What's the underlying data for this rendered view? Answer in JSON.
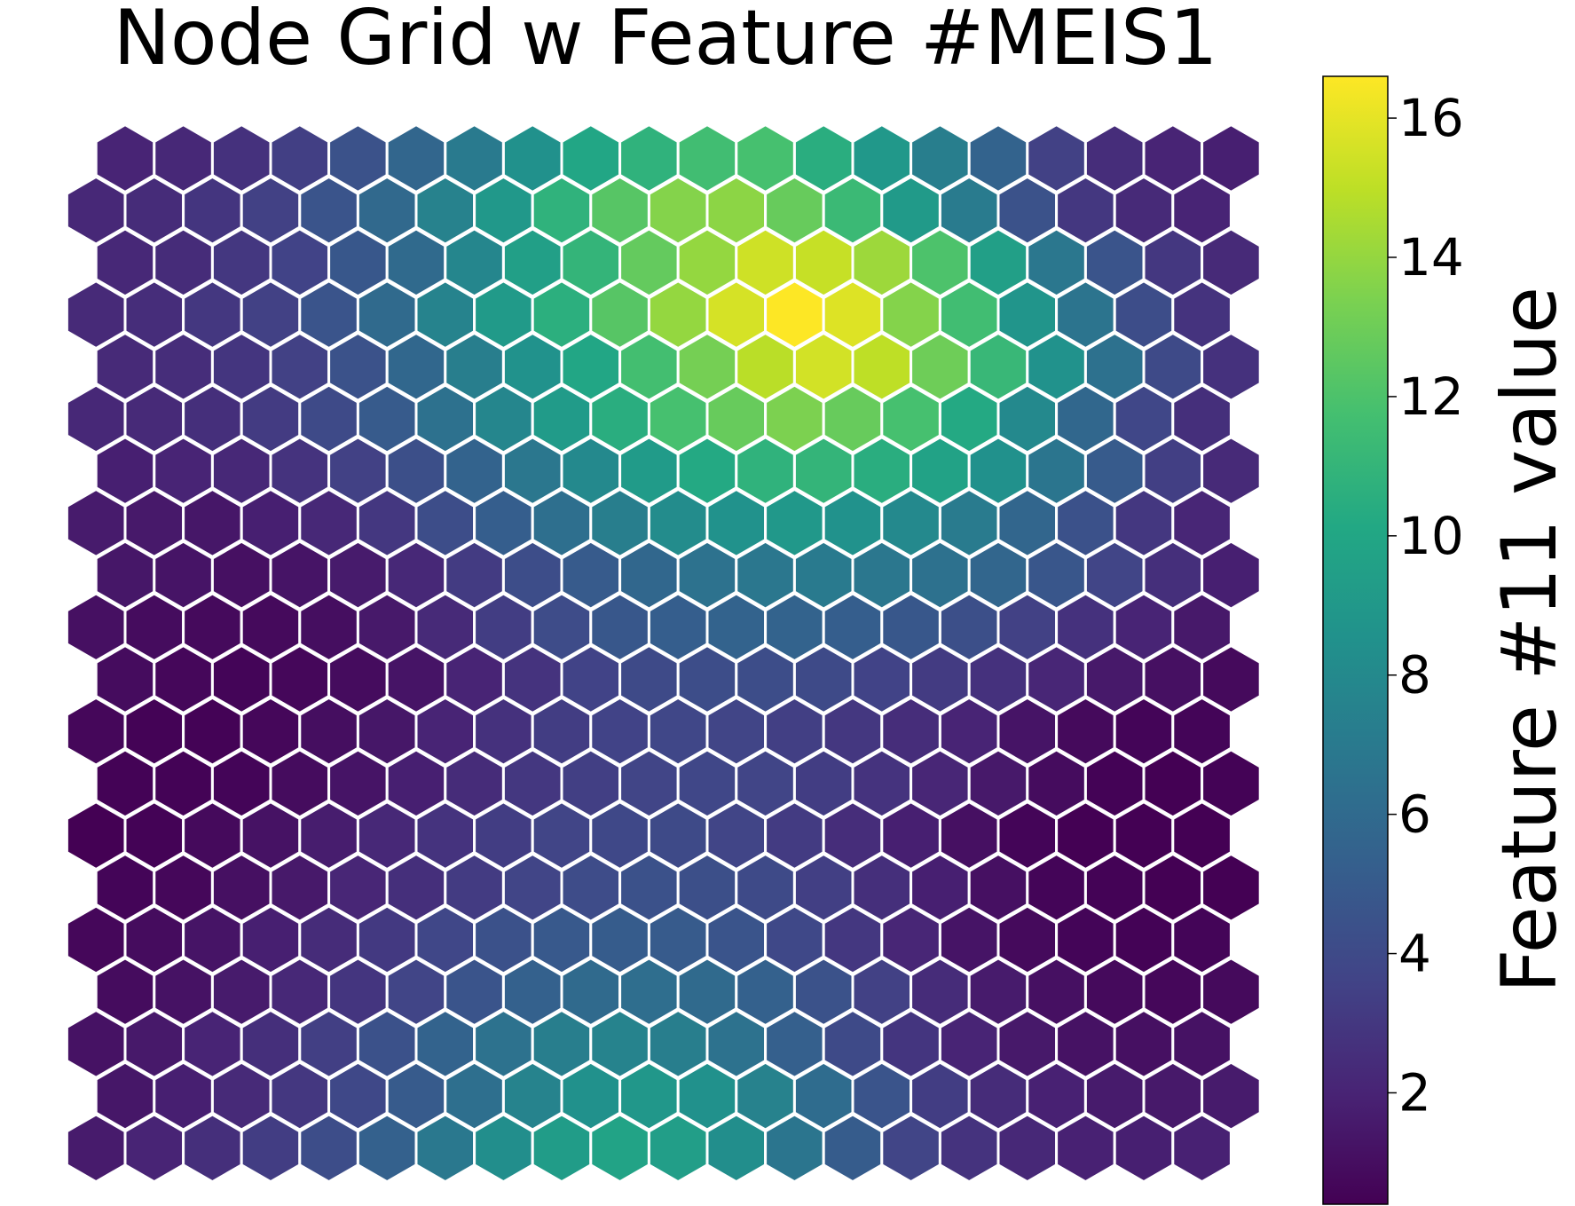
{
  "chart_data": {
    "type": "heatmap",
    "title": "Node Grid w Feature #MEIS1",
    "grid_shape": "hexagonal",
    "rows": 20,
    "cols": 20,
    "colormap": "viridis",
    "colorbar": {
      "label": "Feature #11 value",
      "min": 0.4,
      "max": 16.6,
      "ticks": [
        2,
        4,
        6,
        8,
        10,
        12,
        14,
        16
      ],
      "tick_labels": [
        "2",
        "4",
        "6",
        "8",
        "10",
        "12",
        "14",
        "16"
      ]
    },
    "values": [
      [
        2.0,
        2.2,
        2.7,
        3.4,
        4.5,
        5.7,
        7.0,
        8.5,
        10.0,
        10.8,
        11.6,
        11.8,
        10.5,
        9.0,
        7.3,
        5.5,
        3.5,
        2.5,
        2.0,
        1.8
      ],
      [
        2.2,
        2.4,
        2.9,
        3.5,
        4.6,
        5.9,
        7.5,
        9.0,
        10.8,
        12.3,
        13.6,
        13.8,
        12.8,
        11.3,
        9.1,
        7.1,
        4.5,
        3.0,
        2.3,
        2.0
      ],
      [
        2.2,
        2.4,
        3.0,
        3.6,
        4.8,
        6.0,
        7.8,
        9.5,
        11.0,
        12.7,
        14.0,
        15.4,
        15.2,
        14.2,
        12.0,
        9.5,
        6.8,
        4.6,
        3.0,
        2.3
      ],
      [
        2.3,
        2.5,
        3.0,
        3.5,
        4.6,
        6.0,
        7.6,
        9.1,
        10.6,
        12.3,
        14.0,
        15.6,
        16.6,
        15.8,
        13.6,
        11.6,
        8.8,
        6.6,
        4.2,
        2.8
      ],
      [
        2.3,
        2.5,
        2.9,
        3.5,
        4.5,
        5.8,
        7.3,
        8.6,
        10.0,
        11.7,
        13.2,
        14.9,
        15.5,
        15.0,
        13.0,
        11.2,
        8.6,
        6.4,
        4.0,
        2.7
      ],
      [
        2.2,
        2.3,
        2.6,
        3.2,
        4.0,
        5.0,
        6.4,
        7.8,
        9.2,
        10.5,
        11.8,
        12.8,
        13.4,
        12.8,
        11.8,
        10.2,
        8.0,
        5.8,
        3.8,
        2.6
      ],
      [
        1.8,
        2.0,
        2.2,
        2.8,
        3.5,
        4.3,
        5.5,
        6.8,
        8.0,
        9.2,
        10.2,
        10.8,
        11.0,
        10.5,
        9.7,
        8.5,
        6.7,
        5.0,
        3.4,
        2.3
      ],
      [
        1.6,
        1.5,
        1.4,
        1.8,
        2.2,
        3.0,
        4.2,
        5.2,
        6.3,
        7.3,
        8.2,
        8.6,
        9.0,
        8.6,
        8.0,
        7.1,
        5.7,
        4.4,
        3.0,
        2.1
      ],
      [
        1.4,
        1.3,
        1.1,
        1.3,
        1.6,
        2.2,
        3.2,
        4.2,
        5.0,
        5.8,
        6.5,
        6.8,
        7.0,
        6.8,
        6.4,
        5.7,
        4.7,
        3.7,
        2.6,
        1.8
      ],
      [
        1.1,
        0.9,
        0.8,
        0.8,
        1.0,
        1.5,
        2.3,
        3.3,
        4.1,
        4.8,
        5.2,
        5.5,
        5.5,
        5.2,
        4.8,
        4.3,
        3.5,
        2.7,
        2.0,
        1.5
      ],
      [
        0.9,
        0.7,
        0.6,
        0.7,
        0.9,
        1.3,
        2.0,
        2.8,
        3.6,
        4.0,
        4.2,
        4.2,
        4.0,
        3.6,
        3.2,
        2.7,
        2.1,
        1.5,
        1.1,
        0.8
      ],
      [
        0.7,
        0.5,
        0.5,
        0.7,
        1.0,
        1.4,
        2.0,
        2.7,
        3.3,
        3.6,
        3.8,
        3.7,
        3.4,
        3.0,
        2.5,
        2.0,
        1.3,
        0.8,
        0.6,
        0.6
      ],
      [
        0.5,
        0.5,
        0.6,
        0.9,
        1.3,
        1.8,
        2.4,
        3.0,
        3.4,
        3.7,
        3.8,
        3.7,
        3.3,
        2.8,
        2.1,
        1.5,
        0.9,
        0.5,
        0.4,
        0.5
      ],
      [
        0.4,
        0.5,
        0.8,
        1.2,
        1.7,
        2.2,
        2.8,
        3.3,
        3.7,
        3.9,
        4.0,
        3.7,
        3.2,
        2.5,
        1.8,
        1.1,
        0.6,
        0.4,
        0.4,
        0.4
      ],
      [
        0.6,
        0.7,
        1.1,
        1.5,
        2.1,
        2.6,
        3.2,
        3.7,
        4.1,
        4.4,
        4.3,
        4.0,
        3.4,
        2.6,
        1.8,
        1.1,
        0.6,
        0.5,
        0.4,
        0.4
      ],
      [
        0.7,
        0.9,
        1.3,
        1.8,
        2.4,
        3.1,
        3.8,
        4.4,
        4.9,
        5.1,
        5.0,
        4.6,
        3.9,
        3.0,
        2.1,
        1.3,
        0.8,
        0.6,
        0.5,
        0.6
      ],
      [
        0.9,
        1.2,
        1.6,
        2.2,
        2.9,
        3.7,
        4.6,
        5.4,
        6.0,
        6.2,
        6.0,
        5.4,
        4.5,
        3.5,
        2.4,
        1.6,
        1.1,
        0.8,
        0.7,
        0.8
      ],
      [
        1.2,
        1.5,
        2.0,
        2.6,
        3.4,
        4.4,
        5.5,
        6.5,
        7.3,
        7.6,
        7.3,
        6.5,
        5.3,
        4.0,
        2.9,
        2.0,
        1.5,
        1.2,
        1.1,
        1.2
      ],
      [
        1.4,
        1.8,
        2.3,
        3.0,
        3.9,
        5.0,
        6.3,
        7.6,
        8.5,
        8.9,
        8.5,
        7.5,
        6.1,
        4.6,
        3.3,
        2.4,
        1.9,
        1.6,
        1.5,
        1.6
      ],
      [
        1.6,
        2.0,
        2.6,
        3.3,
        4.2,
        5.4,
        6.9,
        8.3,
        9.3,
        9.8,
        9.4,
        8.3,
        6.7,
        5.1,
        3.7,
        2.8,
        2.2,
        1.9,
        1.8,
        1.9
      ]
    ]
  }
}
